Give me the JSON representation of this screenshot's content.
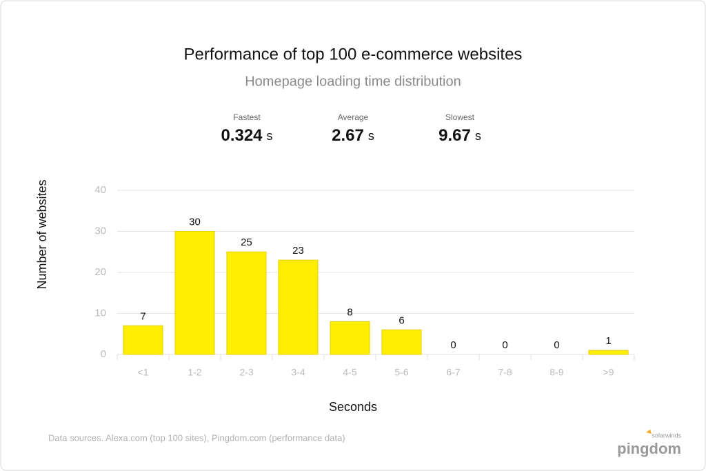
{
  "chart_data": {
    "type": "bar",
    "title": "Performance of top 100 e-commerce websites",
    "subtitle": "Homepage loading time distribution",
    "stats": [
      {
        "label": "Fastest",
        "value": 0.324,
        "unit": "s"
      },
      {
        "label": "Average",
        "value": 2.67,
        "unit": "s"
      },
      {
        "label": "Slowest",
        "value": 9.67,
        "unit": "s"
      }
    ],
    "y_label": "Number of websites",
    "x_label": "Seconds",
    "categories": [
      "<1",
      "1-2",
      "2-3",
      "3-4",
      "4-5",
      "5-6",
      "6-7",
      "7-8",
      "8-9",
      ">9"
    ],
    "values": [
      7,
      30,
      25,
      23,
      8,
      6,
      0,
      0,
      0,
      1
    ],
    "color": "#ffee00",
    "ylim": [
      0,
      40
    ],
    "yticks": [
      0,
      10,
      20,
      30,
      40
    ],
    "grid": true,
    "footer": "Data sources. Alexa.com (top 100 sites),  Pingdom.com (performance data)",
    "logo": {
      "brand": "solarwinds",
      "name": "pingdom"
    }
  }
}
